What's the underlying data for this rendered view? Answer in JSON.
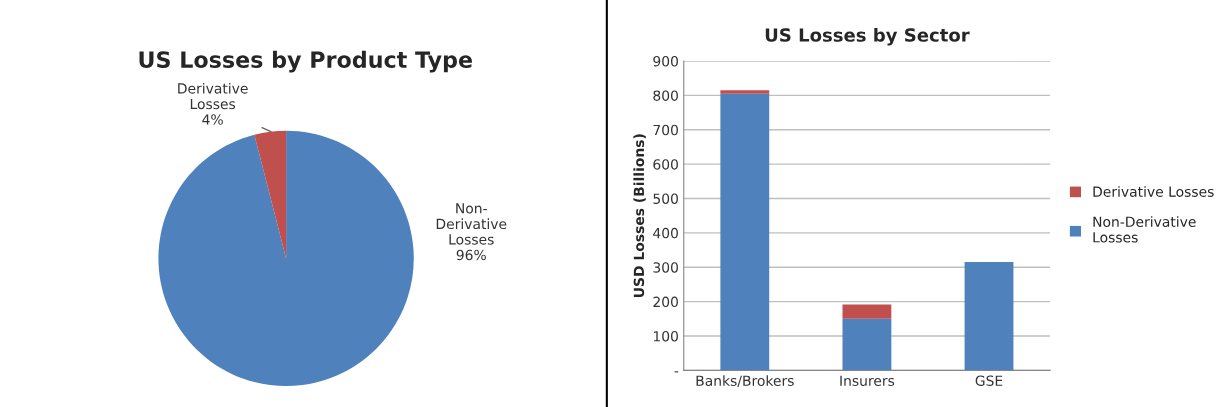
{
  "chart_data": [
    {
      "type": "pie",
      "title": "US Losses by Product Type",
      "categories": [
        "Non-\nDerivative\nLosses",
        "Derivative\nLosses"
      ],
      "values": [
        96,
        4
      ],
      "colors": [
        "#4f81bd",
        "#c0504d"
      ],
      "value_labels": [
        "96%",
        "4%"
      ],
      "legend": false
    },
    {
      "type": "bar",
      "title": "US Losses by Sector",
      "ylabel": "USD Losses (Billions)",
      "categories": [
        "Banks/Brokers",
        "Insurers",
        "GSE"
      ],
      "stacked": true,
      "series": [
        {
          "name": "Non-Derivative\nLosses",
          "color": "#4f81bd",
          "values": [
            805,
            150,
            315
          ]
        },
        {
          "name": "Derivative Losses",
          "color": "#c0504d",
          "values": [
            10,
            42,
            0
          ]
        }
      ],
      "ylim": [
        0,
        900
      ],
      "yticks": [
        {
          "value": 0,
          "label": "-"
        },
        100,
        200,
        300,
        400,
        500,
        600,
        700,
        800,
        900
      ],
      "grid": "y",
      "legend": "right"
    }
  ]
}
